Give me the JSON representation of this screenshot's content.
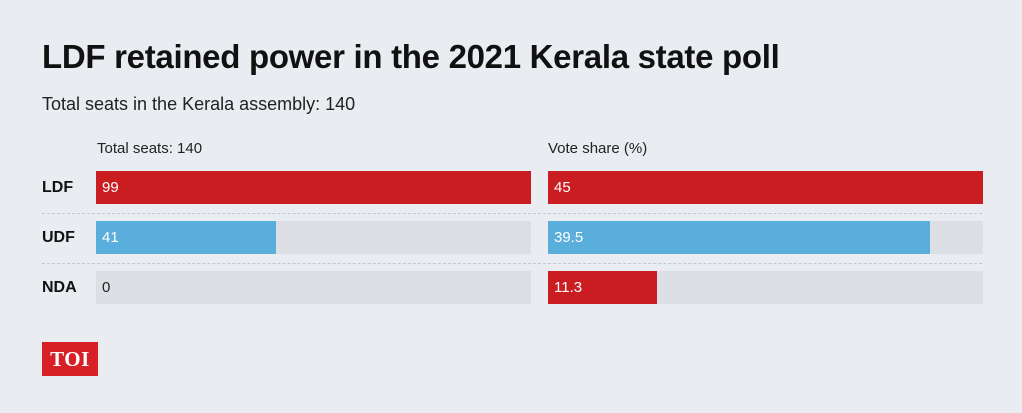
{
  "title": "LDF retained power in the 2021 Kerala state poll",
  "subtitle": "Total seats in the Kerala assembly: 140",
  "logo_text": "TOI",
  "chart_data": [
    {
      "type": "bar",
      "orientation": "horizontal",
      "title": "Total seats: 140",
      "categories": [
        "LDF",
        "UDF",
        "NDA"
      ],
      "values": [
        99,
        41,
        0
      ],
      "value_labels": [
        "99",
        "41",
        "0"
      ],
      "xlim": [
        0,
        99
      ],
      "colors": [
        "#c91d22",
        "#5aaedb",
        "#5aaedb"
      ]
    },
    {
      "type": "bar",
      "orientation": "horizontal",
      "title": "Vote share (%)",
      "categories": [
        "LDF",
        "UDF",
        "NDA"
      ],
      "values": [
        45,
        39.5,
        11.3
      ],
      "value_labels": [
        "45",
        "39.5",
        "11.3"
      ],
      "xlim": [
        0,
        45
      ],
      "colors": [
        "#c91d22",
        "#5aaedb",
        "#c91d22"
      ]
    }
  ]
}
